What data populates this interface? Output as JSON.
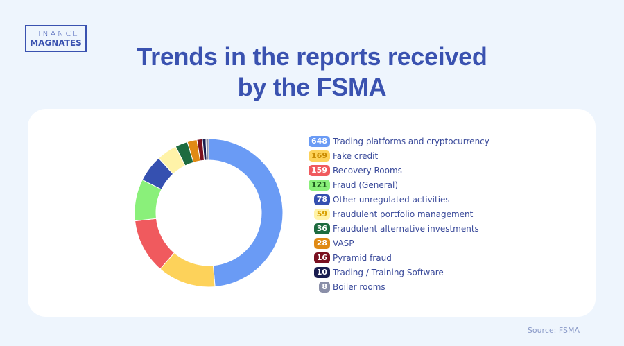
{
  "logo": {
    "line1": "FINANCE",
    "line2": "MAGNATES"
  },
  "title": "Trends in the reports received by the FSMA",
  "source": "Source: FSMA",
  "chart_data": {
    "type": "pie",
    "variant": "donut",
    "legend_position": "right",
    "categories": [
      "Trading platforms and cryptocurrency",
      "Fake credit",
      "Recovery Rooms",
      "Fraud (General)",
      "Other unregulated activities",
      "Fraudulent portfolio management",
      "Fraudulent alternative investments",
      "VASP",
      "Pyramid fraud",
      "Trading / Training Software",
      "Boiler rooms"
    ],
    "values": [
      648,
      169,
      159,
      121,
      78,
      59,
      36,
      28,
      16,
      10,
      8
    ],
    "colors": [
      "#6a9bf5",
      "#fdd25a",
      "#f05a5e",
      "#8af07a",
      "#3550b0",
      "#fff3a8",
      "#1d6b3f",
      "#e08a14",
      "#7a1020",
      "#1a1e50",
      "#8a8fa8"
    ],
    "label_colors": [
      "#ffffff",
      "#c98a00",
      "#ffffff",
      "#1d5a1d",
      "#ffffff",
      "#d8a000",
      "#ffffff",
      "#ffffff",
      "#ffffff",
      "#ffffff",
      "#ffffff"
    ]
  }
}
